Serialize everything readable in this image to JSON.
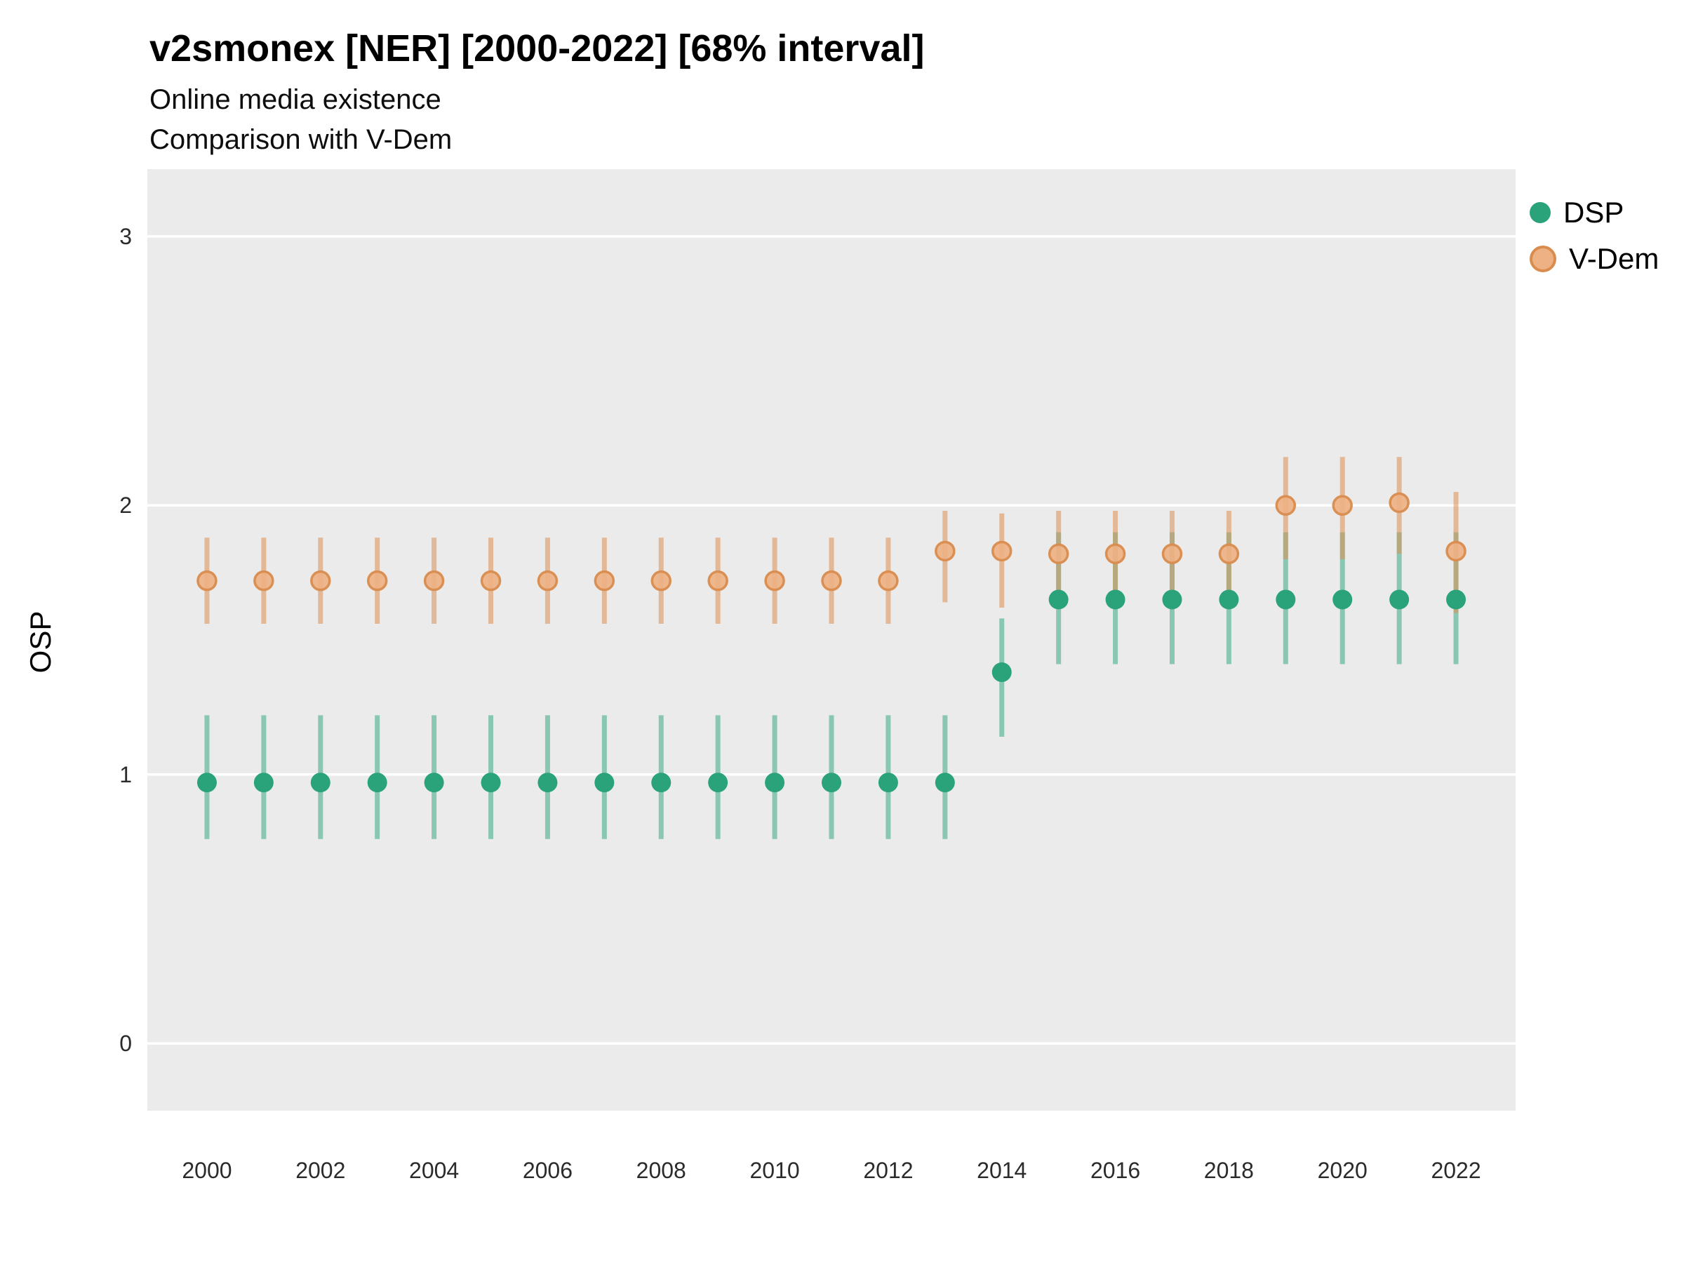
{
  "chart_data": {
    "type": "pointrange",
    "title": "v2smonex [NER] [2000-2022] [68% interval]",
    "subtitle": "Online media existence",
    "subtitle2": "Comparison with V-Dem",
    "ylabel": "OSP",
    "xlabel": "",
    "grid": "on",
    "legend_position": "right",
    "panel_background": "#EBEBEB",
    "gridline_color": "#FFFFFF",
    "x": [
      2000,
      2001,
      2002,
      2003,
      2004,
      2005,
      2006,
      2007,
      2008,
      2009,
      2010,
      2011,
      2012,
      2013,
      2014,
      2015,
      2016,
      2017,
      2018,
      2019,
      2020,
      2021,
      2022
    ],
    "x_ticks": [
      2000,
      2002,
      2004,
      2006,
      2008,
      2010,
      2012,
      2014,
      2016,
      2018,
      2020,
      2022
    ],
    "y_ticks": [
      0,
      1,
      2,
      3
    ],
    "xlim": [
      1998.95,
      2023.05
    ],
    "ylim": [
      -0.25,
      3.25
    ],
    "series": [
      {
        "name": "DSP",
        "point_color": "#2aa37a",
        "bar_color": "#2aa37a",
        "bar_opacity": 0.5,
        "point_opacity": 1,
        "point_radius": 14,
        "est": [
          0.97,
          0.97,
          0.97,
          0.97,
          0.97,
          0.97,
          0.97,
          0.97,
          0.97,
          0.97,
          0.97,
          0.97,
          0.97,
          0.97,
          1.38,
          1.65,
          1.65,
          1.65,
          1.65,
          1.65,
          1.65,
          1.65,
          1.65
        ],
        "lo": [
          0.76,
          0.76,
          0.76,
          0.76,
          0.76,
          0.76,
          0.76,
          0.76,
          0.76,
          0.76,
          0.76,
          0.76,
          0.76,
          0.76,
          1.14,
          1.41,
          1.41,
          1.41,
          1.41,
          1.41,
          1.41,
          1.41,
          1.41
        ],
        "hi": [
          1.22,
          1.22,
          1.22,
          1.22,
          1.22,
          1.22,
          1.22,
          1.22,
          1.22,
          1.22,
          1.22,
          1.22,
          1.22,
          1.22,
          1.58,
          1.9,
          1.9,
          1.9,
          1.9,
          1.9,
          1.9,
          1.9,
          1.9
        ]
      },
      {
        "name": "V-Dem",
        "point_color": "#edb183",
        "point_stroke": "#d98c4e",
        "bar_color": "#dd8e52",
        "bar_opacity": 0.55,
        "point_opacity": 0.92,
        "point_radius": 13,
        "est": [
          1.72,
          1.72,
          1.72,
          1.72,
          1.72,
          1.72,
          1.72,
          1.72,
          1.72,
          1.72,
          1.72,
          1.72,
          1.72,
          1.83,
          1.83,
          1.82,
          1.82,
          1.82,
          1.82,
          2.0,
          2.0,
          2.01,
          1.83
        ],
        "lo": [
          1.56,
          1.56,
          1.56,
          1.56,
          1.56,
          1.56,
          1.56,
          1.56,
          1.56,
          1.56,
          1.56,
          1.56,
          1.56,
          1.64,
          1.62,
          1.63,
          1.63,
          1.63,
          1.63,
          1.8,
          1.8,
          1.82,
          1.6
        ],
        "hi": [
          1.88,
          1.88,
          1.88,
          1.88,
          1.88,
          1.88,
          1.88,
          1.88,
          1.88,
          1.88,
          1.88,
          1.88,
          1.88,
          1.98,
          1.97,
          1.98,
          1.98,
          1.98,
          1.98,
          2.18,
          2.18,
          2.18,
          2.05
        ]
      }
    ]
  }
}
